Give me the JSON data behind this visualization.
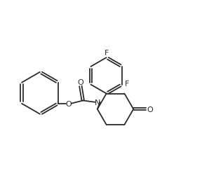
{
  "bg_color": "#ffffff",
  "line_color": "#2b2b2b",
  "line_width": 1.3,
  "font_size": 8.0,
  "figsize": [
    2.88,
    2.57
  ],
  "dpi": 100,
  "xlim": [
    0,
    10
  ],
  "ylim": [
    0,
    9
  ]
}
